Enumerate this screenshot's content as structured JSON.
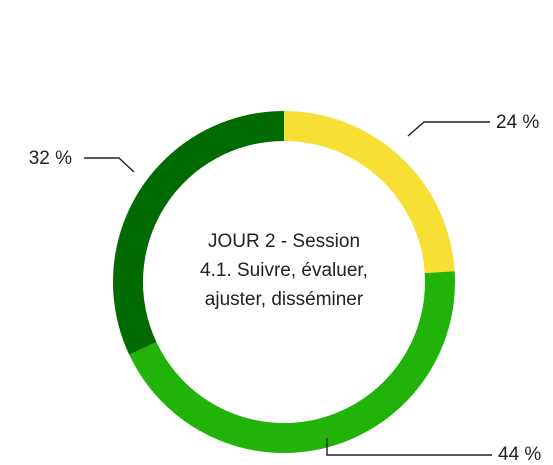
{
  "chart_data": {
    "type": "donut",
    "center_text": [
      "JOUR 2 - Session",
      "4.1. Suivre, évaluer,",
      "ajuster, disséminer"
    ],
    "categories": [
      null,
      null,
      null
    ],
    "values": [
      24,
      44,
      32
    ],
    "value_labels": [
      "24 %",
      "44 %",
      "32 %"
    ],
    "colors": [
      "#f7df35",
      "#22b30b",
      "#016b01"
    ]
  }
}
